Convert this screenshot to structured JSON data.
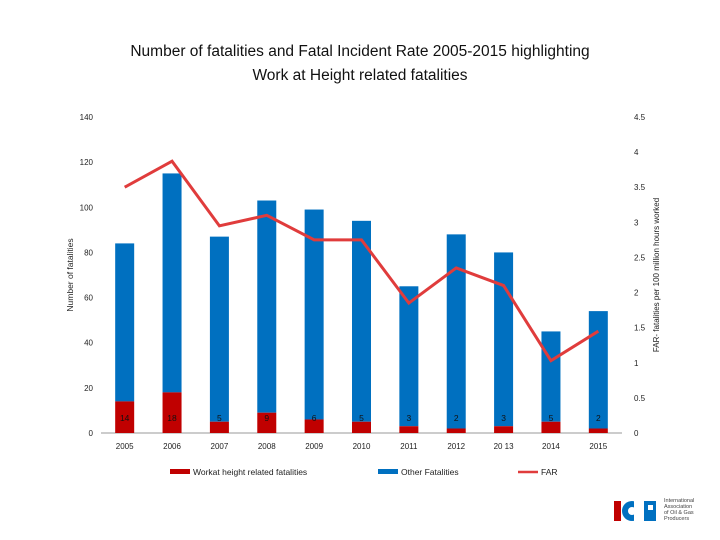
{
  "chart_data": {
    "type": "bar",
    "title": "Number of fatalities and Fatal Incident Rate  2005-2015 highlighting Work at Height related fatalities",
    "title_lines": [
      "Number of fatalities and Fatal Incident Rate  2005-2015 highlighting",
      "Work at Height related fatalities"
    ],
    "ylabel": "Number of fatalities",
    "y2label": "FAR- fatalities per 100 million hours worked",
    "categories": [
      "2005",
      "2006",
      "2007",
      "2008",
      "2009",
      "2010",
      "2011",
      "2012",
      "20 13",
      "2014",
      "2015"
    ],
    "ylim": [
      0,
      140
    ],
    "y_ticks": [
      "0",
      "20",
      "40",
      "60",
      "80",
      "100",
      "120",
      "140"
    ],
    "y2lim": [
      0,
      4.5
    ],
    "y2_ticks": [
      "0",
      "0.5",
      "1",
      "1.5",
      "2",
      "2.5",
      "3",
      "3.5",
      "4",
      "4.5"
    ],
    "stacked": true,
    "series": [
      {
        "name": "Workat height related fatalities",
        "kind": "bar",
        "color": "#c00000",
        "values": [
          14,
          18,
          5,
          9,
          6,
          5,
          3,
          2,
          3,
          5,
          2
        ]
      },
      {
        "name": "Other Fatalities",
        "kind": "bar",
        "color": "#0070c0",
        "values": [
          70,
          97,
          82,
          94,
          93,
          89,
          62,
          86,
          77,
          40,
          52
        ]
      },
      {
        "name": "FAR",
        "kind": "line",
        "axis": "secondary",
        "color": "#e03c3c",
        "values": [
          3.5,
          3.87,
          2.95,
          3.1,
          2.75,
          2.75,
          1.85,
          2.35,
          2.1,
          1.03,
          1.45
        ]
      }
    ],
    "data_labels": [
      "14",
      "18",
      "5",
      "9",
      "6",
      "5",
      "3",
      "2",
      "3",
      "5",
      "2"
    ],
    "legend_position": "bottom",
    "grid": false
  },
  "logo": {
    "mark": "IOGP",
    "lines": [
      "International",
      "Association",
      "of Oil & Gas",
      "Producers"
    ]
  }
}
